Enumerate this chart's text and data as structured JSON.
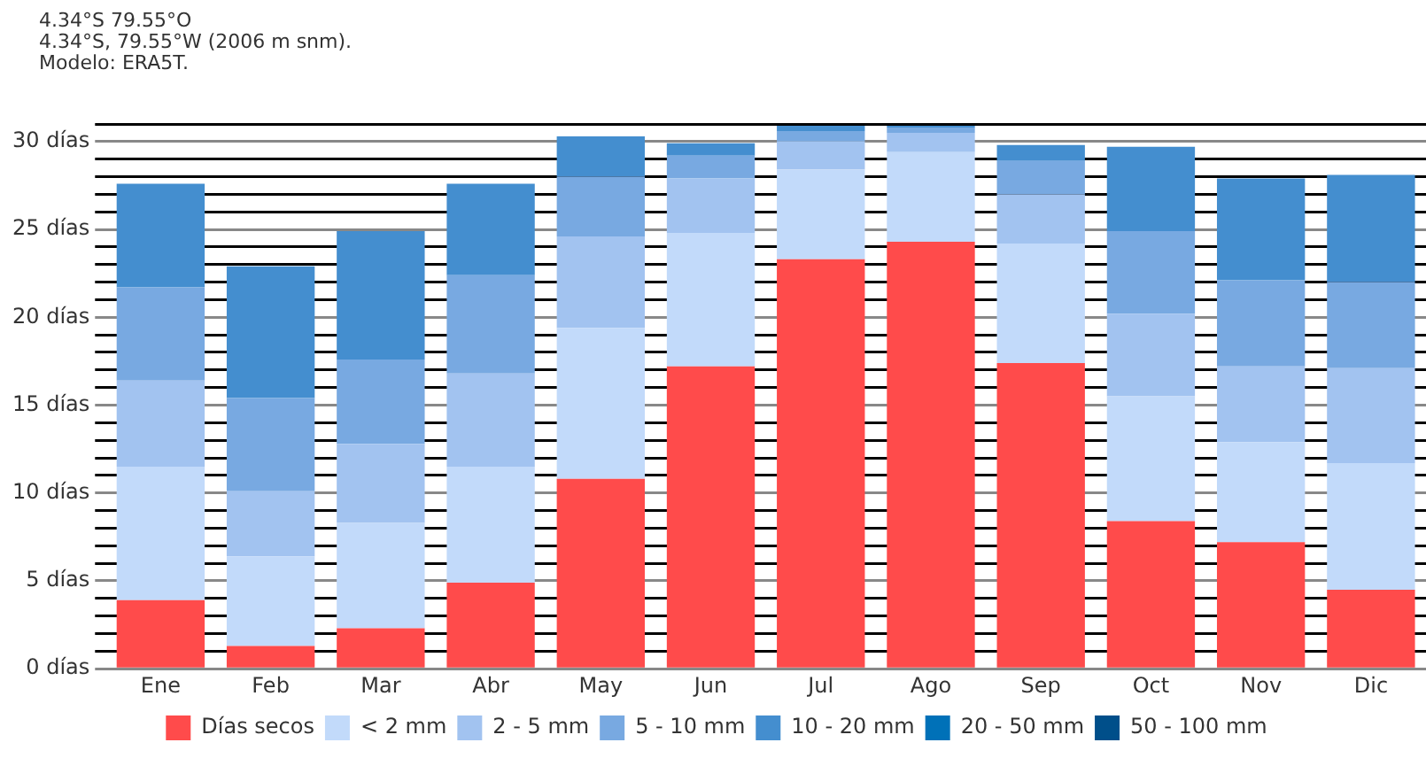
{
  "chart_data": {
    "type": "bar",
    "title": "4.34°S 79.55°O",
    "subtitle": "4.34°S, 79.55°W (2006 m snm).",
    "annotations": [
      "Modelo: ERA5T."
    ],
    "categories": [
      "Ene",
      "Feb",
      "Mar",
      "Abr",
      "May",
      "Jun",
      "Jul",
      "Ago",
      "Sep",
      "Oct",
      "Nov",
      "Dic"
    ],
    "stacked": true,
    "series": [
      {
        "name": "Días secos",
        "color": "#ff4b4b",
        "values": [
          3.9,
          1.3,
          2.3,
          4.9,
          10.8,
          17.2,
          23.3,
          24.3,
          17.4,
          8.4,
          7.2,
          4.5
        ]
      },
      {
        "name": "< 2 mm",
        "color": "#c2dafa",
        "values": [
          7.6,
          5.1,
          6.0,
          6.6,
          8.6,
          7.6,
          5.1,
          5.1,
          6.8,
          7.1,
          5.7,
          7.2
        ]
      },
      {
        "name": "2 - 5 mm",
        "color": "#a2c3f0",
        "values": [
          4.9,
          3.7,
          4.5,
          5.3,
          5.2,
          3.1,
          1.6,
          1.1,
          2.8,
          4.7,
          4.3,
          5.4
        ]
      },
      {
        "name": "5 - 10 mm",
        "color": "#78a9e1",
        "values": [
          5.3,
          5.3,
          4.8,
          5.6,
          3.4,
          1.3,
          0.6,
          0.3,
          1.9,
          4.7,
          4.9,
          4.9
        ]
      },
      {
        "name": "10 - 20 mm",
        "color": "#448ecf",
        "values": [
          5.9,
          7.5,
          7.3,
          5.2,
          2.3,
          0.7,
          0.3,
          0.1,
          0.9,
          4.8,
          5.8,
          6.1
        ]
      },
      {
        "name": "20 - 50 mm",
        "color": "#0071b8",
        "values": [
          0,
          0,
          0,
          0,
          0,
          0,
          0,
          0,
          0,
          0,
          0,
          0
        ]
      },
      {
        "name": "50 - 100 mm",
        "color": "#004f8a",
        "values": [
          0,
          0,
          0,
          0,
          0,
          0,
          0,
          0,
          0,
          0,
          0,
          0
        ]
      }
    ],
    "ylim": [
      0,
      31
    ],
    "yticks": [
      {
        "value": 0,
        "label": "0 días"
      },
      {
        "value": 1,
        "label": null
      },
      {
        "value": 2,
        "label": null
      },
      {
        "value": 3,
        "label": null
      },
      {
        "value": 4,
        "label": null
      },
      {
        "value": 5,
        "label": "5 días"
      },
      {
        "value": 6,
        "label": null
      },
      {
        "value": 7,
        "label": null
      },
      {
        "value": 8,
        "label": null
      },
      {
        "value": 9,
        "label": null
      },
      {
        "value": 10,
        "label": "10 días"
      },
      {
        "value": 11,
        "label": null
      },
      {
        "value": 12,
        "label": null
      },
      {
        "value": 13,
        "label": null
      },
      {
        "value": 14,
        "label": null
      },
      {
        "value": 15,
        "label": "15 días"
      },
      {
        "value": 16,
        "label": null
      },
      {
        "value": 17,
        "label": null
      },
      {
        "value": 18,
        "label": null
      },
      {
        "value": 19,
        "label": null
      },
      {
        "value": 20,
        "label": "20 días"
      },
      {
        "value": 21,
        "label": null
      },
      {
        "value": 22,
        "label": null
      },
      {
        "value": 23,
        "label": null
      },
      {
        "value": 24,
        "label": null
      },
      {
        "value": 25,
        "label": "25 días"
      },
      {
        "value": 26,
        "label": null
      },
      {
        "value": 27,
        "label": null
      },
      {
        "value": 28,
        "label": null
      },
      {
        "value": 29,
        "label": null
      },
      {
        "value": 30,
        "label": "30 días"
      },
      {
        "value": 31,
        "label": null
      }
    ],
    "grid": "y",
    "legend": "bottom"
  }
}
